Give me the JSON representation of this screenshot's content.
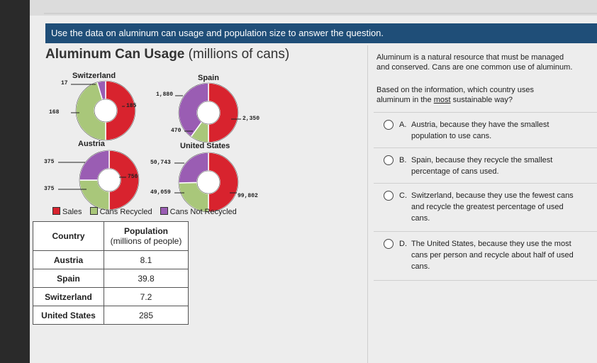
{
  "banner": "Use the data on aluminum can usage and population size to answer the question.",
  "heading": {
    "bold": "Aluminum Can Usage",
    "rest": "(millions of cans)"
  },
  "legend": [
    {
      "label": "Sales",
      "color": "#d8232e"
    },
    {
      "label": "Cans Recycled",
      "color": "#a9c77a"
    },
    {
      "label": "Cans Not Recycled",
      "color": "#9a5db3"
    }
  ],
  "chart_data": {
    "type": "pie",
    "charts": [
      {
        "title": "Switzerland",
        "sales": 185,
        "recycled": 168,
        "not_recycled": 17
      },
      {
        "title": "Spain",
        "sales": 2350,
        "recycled": 470,
        "not_recycled": 1880
      },
      {
        "title": "Austria",
        "sales": 750,
        "recycled": 375,
        "not_recycled": 375
      },
      {
        "title": "United States",
        "sales": 99802,
        "recycled": 49059,
        "not_recycled": 50743
      }
    ],
    "labels": {
      "switzerland": {
        "not_recycled": "17",
        "sales": "185",
        "recycled": "168"
      },
      "spain": {
        "not_recycled": "1,880",
        "sales": "2,350",
        "recycled": "470"
      },
      "austria": {
        "not_recycled": "375",
        "sales": "750",
        "recycled": "375"
      },
      "united_states": {
        "not_recycled": "50,743",
        "recycled": "49,059",
        "sales": "99,802"
      }
    }
  },
  "table": {
    "headers": [
      "Country",
      "Population",
      "(millions of people)"
    ],
    "rows": [
      {
        "country": "Austria",
        "population": "8.1"
      },
      {
        "country": "Spain",
        "population": "39.8"
      },
      {
        "country": "Switzerland",
        "population": "7.2"
      },
      {
        "country": "United States",
        "population": "285"
      }
    ]
  },
  "question": {
    "intro_line1": "Aluminum is a natural resource that must be managed",
    "intro_line2": "and conserved. Cans are one common use of aluminum.",
    "prompt_line1": "Based on the information, which country uses",
    "prompt_line2_pre": "aluminum in the",
    "prompt_line2_emph": "most",
    "prompt_line2_post": "sustainable way?"
  },
  "options": [
    {
      "letter": "A.",
      "lines": [
        "Austria, because they have the smallest",
        "population to use cans."
      ]
    },
    {
      "letter": "B.",
      "lines": [
        "Spain, because they recycle the smallest",
        "percentage of cans used."
      ]
    },
    {
      "letter": "C.",
      "lines": [
        "Switzerland, because they use the fewest cans",
        "and recycle the greatest percentage of used",
        "cans."
      ]
    },
    {
      "letter": "D.",
      "lines": [
        "The United States, because they use the most",
        "cans per person and recycle about half of used",
        "cans."
      ]
    }
  ]
}
